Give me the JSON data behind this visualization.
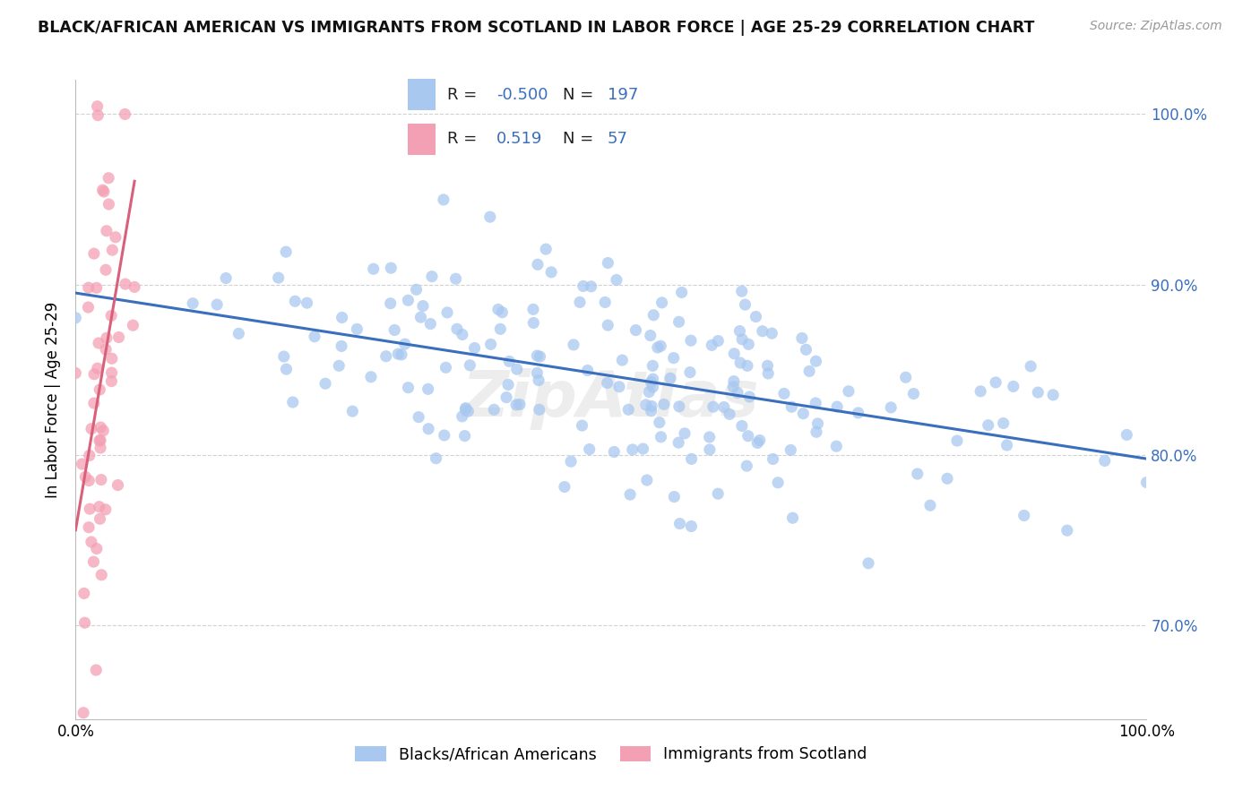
{
  "title": "BLACK/AFRICAN AMERICAN VS IMMIGRANTS FROM SCOTLAND IN LABOR FORCE | AGE 25-29 CORRELATION CHART",
  "source_text": "Source: ZipAtlas.com",
  "ylabel": "In Labor Force | Age 25-29",
  "xlim": [
    0.0,
    1.0
  ],
  "ylim": [
    0.645,
    1.02
  ],
  "blue_R": -0.5,
  "blue_N": 197,
  "pink_R": 0.519,
  "pink_N": 57,
  "blue_color": "#a8c8f0",
  "pink_color": "#f4a0b4",
  "blue_line_color": "#3a6fbd",
  "pink_line_color": "#d9607a",
  "blue_label": "Blacks/African Americans",
  "pink_label": "Immigrants from Scotland",
  "yticks": [
    0.7,
    0.8,
    0.9,
    1.0
  ],
  "ytick_labels": [
    "70.0%",
    "80.0%",
    "90.0%",
    "100.0%"
  ],
  "xtick_labels": [
    "0.0%",
    "100.0%"
  ],
  "grid_color": "#cccccc",
  "background_color": "#ffffff",
  "watermark": "ZipAtlas",
  "blue_seed": 101,
  "pink_seed": 202,
  "legend_R1": "-0.500",
  "legend_N1": "197",
  "legend_R2": "0.519",
  "legend_N2": "57"
}
